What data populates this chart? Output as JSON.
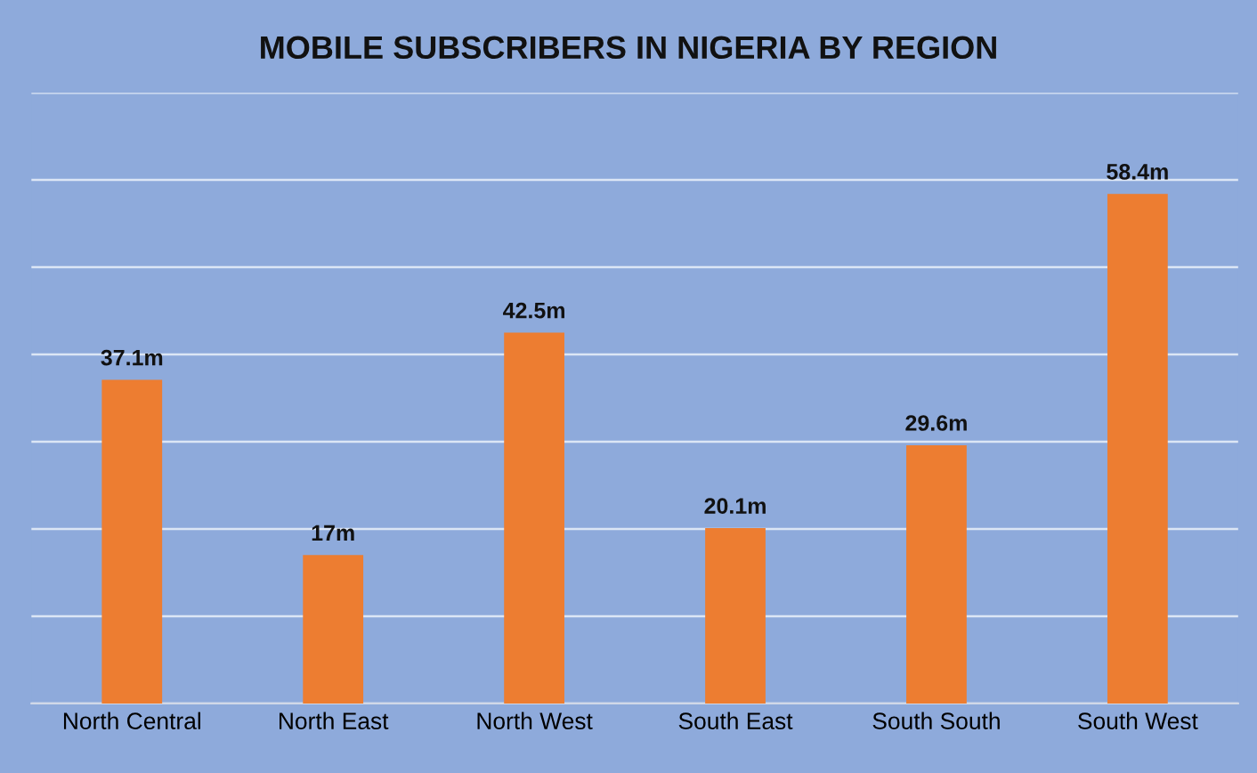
{
  "chart_data": {
    "type": "bar",
    "title": "MOBILE SUBSCRIBERS IN NIGERIA BY REGION",
    "categories": [
      "North Central",
      "North East",
      "North West",
      "South East",
      "South South",
      "South West"
    ],
    "values": [
      37.1,
      17,
      42.5,
      20.1,
      29.6,
      58.4
    ],
    "value_labels": [
      "37.1m",
      "17m",
      "42.5m",
      "20.1m",
      "29.6m",
      "58.4m"
    ],
    "color": "#ed7d31",
    "ylim": [
      0,
      70
    ],
    "yticks": [
      {
        "value": 0,
        "label": null
      },
      {
        "value": 10,
        "label": null
      },
      {
        "value": 20,
        "label": null
      },
      {
        "value": 30,
        "label": null
      },
      {
        "value": 40,
        "label": null
      },
      {
        "value": 50,
        "label": null
      },
      {
        "value": 60,
        "label": null
      },
      {
        "value": 70,
        "label": null
      }
    ],
    "tick_labels": "x",
    "grid": "y"
  }
}
